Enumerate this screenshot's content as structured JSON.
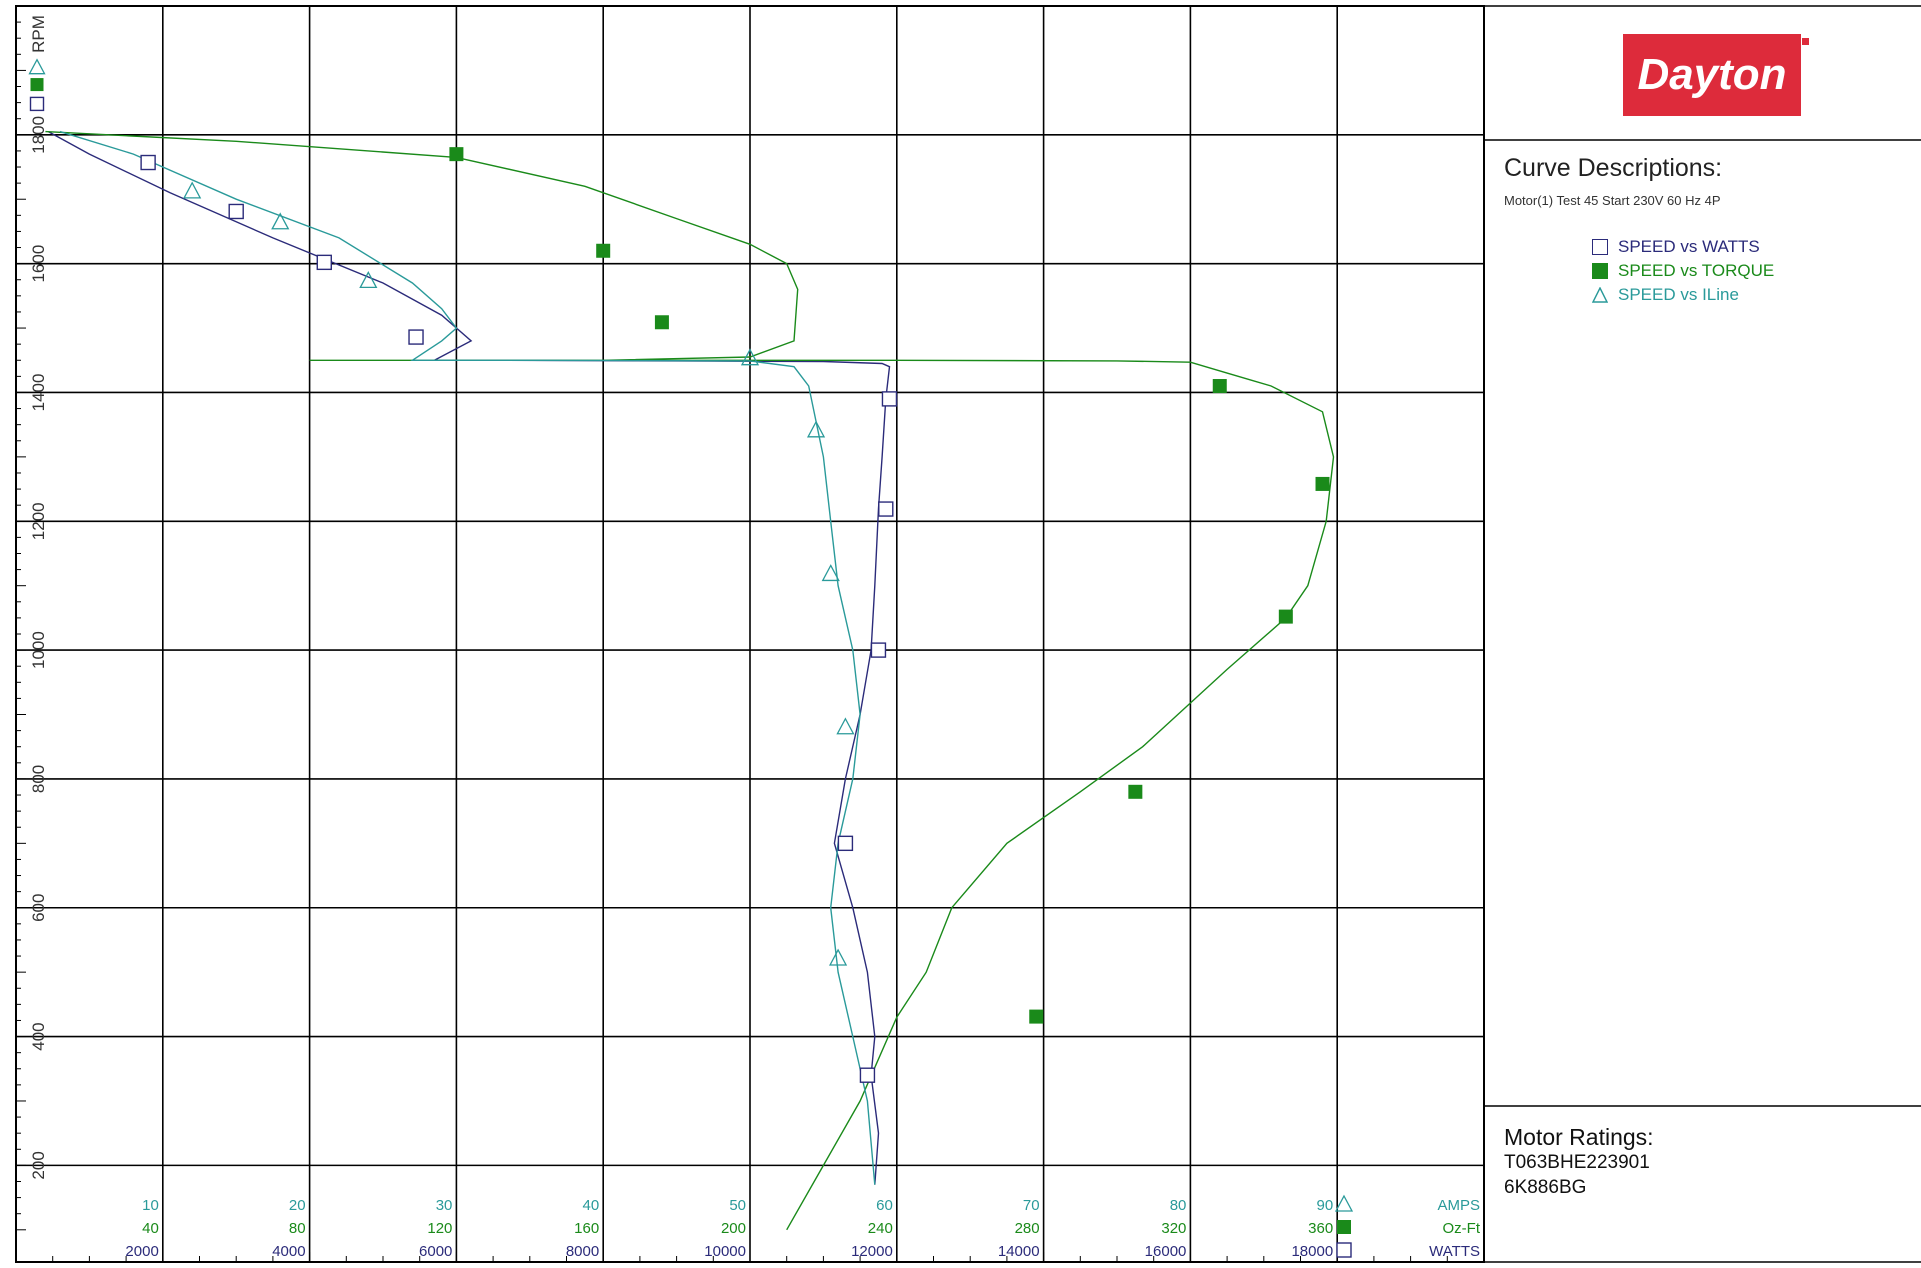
{
  "brand": "Dayton",
  "curve_descriptions": {
    "title": "Curve Descriptions:",
    "subtitle": "Motor(1) Test 45 Start 230V 60 Hz 4P",
    "legend": [
      {
        "label": "SPEED vs WATTS",
        "marker": "open-square",
        "color": "#2b2b7a"
      },
      {
        "label": "SPEED vs TORQUE",
        "marker": "filled-square",
        "color": "#1a8a1a"
      },
      {
        "label": "SPEED vs ILine",
        "marker": "open-triangle",
        "color": "#2a9a9a"
      }
    ]
  },
  "motor_ratings": {
    "title": "Motor Ratings:",
    "lines": [
      "T063BHE223901",
      "6K886BG"
    ]
  },
  "chart_data": {
    "type": "line",
    "ylabel": "RPM",
    "ylim": [
      50,
      2000
    ],
    "y_ticks": [
      200,
      400,
      600,
      800,
      1000,
      1200,
      1400,
      1600,
      1800
    ],
    "grid": true,
    "legend_position": "right-panel",
    "x_axes": [
      {
        "unit_label": "AMPS",
        "color": "#2a9a9a",
        "range": [
          0,
          100
        ],
        "ticks": [
          10,
          20,
          30,
          40,
          50,
          60,
          70,
          80,
          90
        ]
      },
      {
        "unit_label": "Oz-Ft",
        "color": "#1a8a1a",
        "range": [
          0,
          400
        ],
        "ticks": [
          40,
          80,
          120,
          160,
          200,
          240,
          280,
          320,
          360
        ]
      },
      {
        "unit_label": "WATTS",
        "color": "#2b2b7a",
        "range": [
          0,
          20000
        ],
        "ticks": [
          2000,
          4000,
          6000,
          8000,
          10000,
          12000,
          14000,
          16000,
          18000
        ]
      }
    ],
    "series": [
      {
        "name": "SPEED vs WATTS",
        "axis": "WATTS",
        "color": "#2b2b7a",
        "marker": "open-square",
        "points": [
          [
            440,
            1805
          ],
          [
            1000,
            1770
          ],
          [
            2100,
            1710
          ],
          [
            3500,
            1640
          ],
          [
            5000,
            1570
          ],
          [
            5800,
            1520
          ],
          [
            6200,
            1480
          ],
          [
            5700,
            1450
          ],
          [
            6500,
            1450
          ],
          [
            9000,
            1449
          ],
          [
            11000,
            1448
          ],
          [
            11800,
            1445
          ],
          [
            11900,
            1440
          ],
          [
            11850,
            1390
          ],
          [
            11800,
            1300
          ],
          [
            11750,
            1220
          ],
          [
            11700,
            1100
          ],
          [
            11650,
            1000
          ],
          [
            11500,
            900
          ],
          [
            11300,
            800
          ],
          [
            11150,
            700
          ],
          [
            11400,
            600
          ],
          [
            11600,
            500
          ],
          [
            11700,
            400
          ],
          [
            11650,
            340
          ],
          [
            11750,
            250
          ],
          [
            11700,
            170
          ]
        ],
        "marker_points": [
          [
            1800,
            1757
          ],
          [
            3000,
            1681
          ],
          [
            4200,
            1602
          ],
          [
            5450,
            1486
          ],
          [
            11900,
            1390
          ],
          [
            11850,
            1219
          ],
          [
            11750,
            1000
          ],
          [
            11300,
            700
          ],
          [
            11600,
            340
          ]
        ]
      },
      {
        "name": "SPEED vs TORQUE",
        "axis": "Oz-Ft",
        "color": "#1a8a1a",
        "marker": "filled-square",
        "points": [
          [
            8,
            1805
          ],
          [
            60,
            1790
          ],
          [
            120,
            1765
          ],
          [
            155,
            1720
          ],
          [
            180,
            1670
          ],
          [
            200,
            1630
          ],
          [
            210,
            1600
          ],
          [
            213,
            1560
          ],
          [
            212,
            1480
          ],
          [
            200,
            1455
          ],
          [
            160,
            1450
          ],
          [
            120,
            1450
          ],
          [
            80,
            1450
          ],
          [
            100,
            1450
          ],
          [
            240,
            1450
          ],
          [
            300,
            1449
          ],
          [
            320,
            1447
          ],
          [
            330,
            1430
          ],
          [
            342,
            1410
          ],
          [
            356,
            1370
          ],
          [
            359,
            1300
          ],
          [
            357,
            1200
          ],
          [
            352,
            1100
          ],
          [
            346,
            1050
          ],
          [
            330,
            970
          ],
          [
            307,
            850
          ],
          [
            290,
            780
          ],
          [
            270,
            700
          ],
          [
            255,
            600
          ],
          [
            248,
            500
          ],
          [
            240,
            430
          ],
          [
            230,
            300
          ],
          [
            220,
            200
          ],
          [
            210,
            100
          ]
        ],
        "marker_points": [
          [
            120,
            1770
          ],
          [
            160,
            1620
          ],
          [
            176,
            1509
          ],
          [
            328,
            1410
          ],
          [
            356,
            1258
          ],
          [
            346,
            1052
          ],
          [
            305,
            780
          ],
          [
            278,
            431
          ]
        ]
      },
      {
        "name": "SPEED vs ILine",
        "axis": "AMPS",
        "color": "#2a9a9a",
        "marker": "open-triangle",
        "points": [
          [
            3,
            1805
          ],
          [
            8,
            1770
          ],
          [
            15,
            1700
          ],
          [
            22,
            1640
          ],
          [
            27,
            1570
          ],
          [
            29,
            1530
          ],
          [
            30,
            1500
          ],
          [
            29,
            1480
          ],
          [
            27,
            1450
          ],
          [
            35,
            1450
          ],
          [
            50,
            1449
          ],
          [
            53,
            1440
          ],
          [
            54,
            1410
          ],
          [
            55,
            1300
          ],
          [
            55.5,
            1200
          ],
          [
            56,
            1100
          ],
          [
            57,
            1000
          ],
          [
            57.5,
            900
          ],
          [
            57,
            800
          ],
          [
            56,
            700
          ],
          [
            55.5,
            600
          ],
          [
            56,
            500
          ],
          [
            57,
            400
          ],
          [
            58,
            300
          ],
          [
            58.5,
            170
          ]
        ],
        "marker_points": [
          [
            12,
            1713
          ],
          [
            18,
            1665
          ],
          [
            24,
            1574
          ],
          [
            50,
            1454
          ],
          [
            54.5,
            1342
          ],
          [
            55.5,
            1119
          ],
          [
            56.5,
            881
          ],
          [
            56,
            522
          ]
        ]
      }
    ],
    "top_markers": [
      {
        "marker": "open-triangle",
        "y": 1905
      },
      {
        "marker": "filled-square",
        "y": 1878
      },
      {
        "marker": "open-square",
        "y": 1848
      }
    ]
  }
}
